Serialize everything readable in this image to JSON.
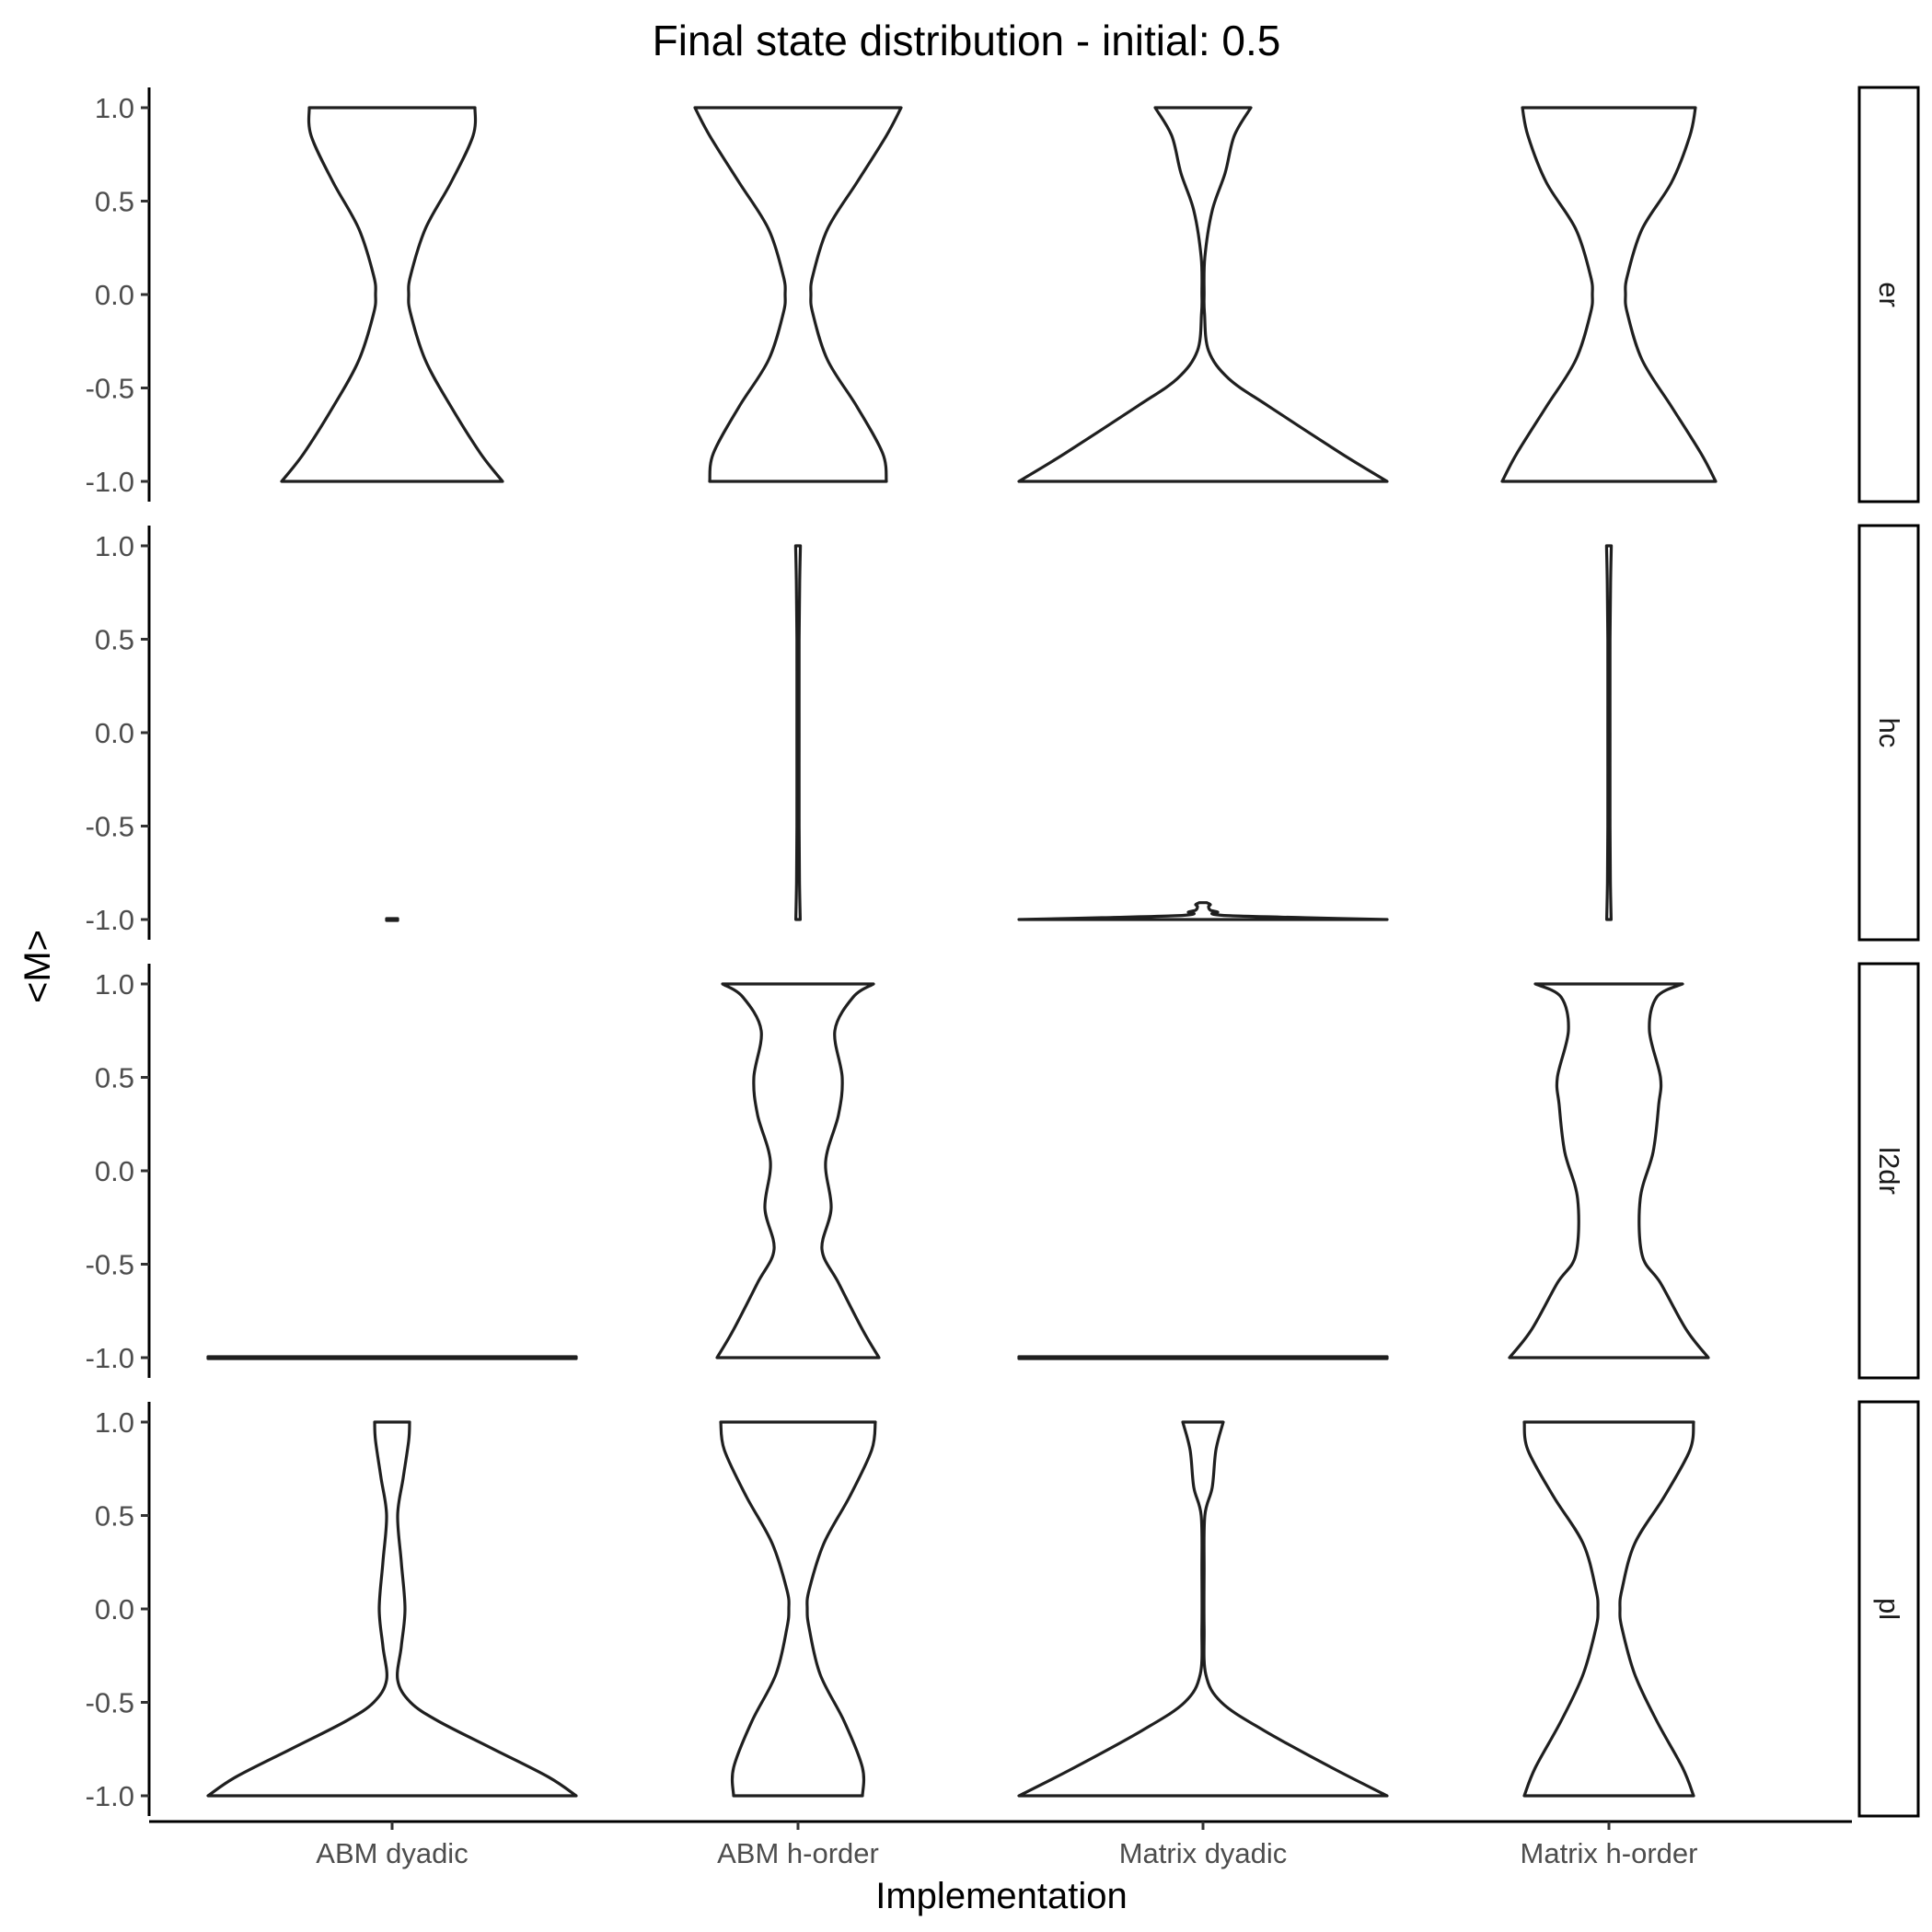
{
  "chart_data": {
    "type": "violin",
    "title": "Final state distribution - initial: 0.5",
    "xlabel": "Implementation",
    "ylabel": "<M>",
    "categories": [
      "ABM dyadic",
      "ABM h-order",
      "Matrix dyadic",
      "Matrix h-order"
    ],
    "y_ticks": [
      "-1.0",
      "-0.5",
      "0.0",
      "0.5",
      "1.0"
    ],
    "ylim": [
      -1.0,
      1.0
    ],
    "grid": false,
    "facets": [
      {
        "label": "er",
        "violins": [
          {
            "category": "ABM dyadic",
            "profile": [
              [
                -1.0,
                0.6
              ],
              [
                -0.85,
                0.48
              ],
              [
                -0.6,
                0.32
              ],
              [
                -0.35,
                0.18
              ],
              [
                -0.1,
                0.1
              ],
              [
                0.0,
                0.09
              ],
              [
                0.1,
                0.1
              ],
              [
                0.35,
                0.18
              ],
              [
                0.6,
                0.32
              ],
              [
                0.85,
                0.44
              ],
              [
                1.0,
                0.45
              ]
            ]
          },
          {
            "category": "ABM h-order",
            "profile": [
              [
                -1.0,
                0.48
              ],
              [
                -0.85,
                0.46
              ],
              [
                -0.6,
                0.32
              ],
              [
                -0.35,
                0.16
              ],
              [
                -0.1,
                0.08
              ],
              [
                0.0,
                0.07
              ],
              [
                0.1,
                0.08
              ],
              [
                0.35,
                0.16
              ],
              [
                0.6,
                0.32
              ],
              [
                0.85,
                0.48
              ],
              [
                1.0,
                0.56
              ]
            ]
          },
          {
            "category": "Matrix dyadic",
            "profile": [
              [
                -1.0,
                1.0
              ],
              [
                -0.85,
                0.75
              ],
              [
                -0.6,
                0.36
              ],
              [
                -0.45,
                0.14
              ],
              [
                -0.3,
                0.03
              ],
              [
                -0.1,
                0.008
              ],
              [
                0.0,
                0.006
              ],
              [
                0.2,
                0.01
              ],
              [
                0.45,
                0.05
              ],
              [
                0.65,
                0.12
              ],
              [
                0.85,
                0.17
              ],
              [
                1.0,
                0.26
              ]
            ]
          },
          {
            "category": "Matrix h-order",
            "profile": [
              [
                -1.0,
                0.58
              ],
              [
                -0.85,
                0.5
              ],
              [
                -0.6,
                0.34
              ],
              [
                -0.35,
                0.18
              ],
              [
                -0.1,
                0.1
              ],
              [
                0.0,
                0.09
              ],
              [
                0.1,
                0.1
              ],
              [
                0.35,
                0.18
              ],
              [
                0.6,
                0.34
              ],
              [
                0.85,
                0.44
              ],
              [
                1.0,
                0.47
              ]
            ]
          }
        ]
      },
      {
        "label": "hc",
        "violins": [
          {
            "category": "ABM dyadic",
            "profile": [
              [
                -1.0,
                0.03
              ],
              [
                -0.998,
                0.03
              ]
            ]
          },
          {
            "category": "ABM h-order",
            "profile": [
              [
                -1.0,
                0.012
              ],
              [
                -0.8,
                0.008
              ],
              [
                -0.5,
                0.006
              ],
              [
                0.0,
                0.005
              ],
              [
                0.5,
                0.006
              ],
              [
                0.8,
                0.009
              ],
              [
                1.0,
                0.013
              ]
            ]
          },
          {
            "category": "Matrix dyadic",
            "profile": [
              [
                -1.0,
                1.0
              ],
              [
                -0.99,
                0.55
              ],
              [
                -0.98,
                0.15
              ],
              [
                -0.97,
                0.05
              ],
              [
                -0.96,
                0.08
              ],
              [
                -0.95,
                0.04
              ],
              [
                -0.93,
                0.03
              ],
              [
                -0.92,
                0.04
              ],
              [
                -0.91,
                0.02
              ]
            ]
          },
          {
            "category": "Matrix h-order",
            "profile": [
              [
                -1.0,
                0.012
              ],
              [
                -0.8,
                0.008
              ],
              [
                -0.5,
                0.006
              ],
              [
                0.0,
                0.005
              ],
              [
                0.5,
                0.006
              ],
              [
                0.8,
                0.009
              ],
              [
                1.0,
                0.013
              ]
            ]
          }
        ]
      },
      {
        "label": "l2dr",
        "violins": [
          {
            "category": "ABM dyadic",
            "profile": [
              [
                -1.0,
                1.0
              ],
              [
                -0.998,
                1.0
              ]
            ]
          },
          {
            "category": "ABM h-order",
            "profile": [
              [
                -1.0,
                0.44
              ],
              [
                -0.85,
                0.35
              ],
              [
                -0.6,
                0.22
              ],
              [
                -0.42,
                0.13
              ],
              [
                -0.2,
                0.18
              ],
              [
                0.05,
                0.15
              ],
              [
                0.3,
                0.22
              ],
              [
                0.5,
                0.24
              ],
              [
                0.75,
                0.2
              ],
              [
                0.93,
                0.3
              ],
              [
                1.0,
                0.41
              ]
            ]
          },
          {
            "category": "Matrix dyadic",
            "profile": [
              [
                -1.0,
                1.0
              ],
              [
                -0.998,
                1.0
              ]
            ]
          },
          {
            "category": "Matrix h-order",
            "profile": [
              [
                -1.0,
                0.54
              ],
              [
                -0.85,
                0.42
              ],
              [
                -0.6,
                0.28
              ],
              [
                -0.45,
                0.18
              ],
              [
                -0.15,
                0.17
              ],
              [
                0.1,
                0.24
              ],
              [
                0.35,
                0.27
              ],
              [
                0.5,
                0.28
              ],
              [
                0.75,
                0.22
              ],
              [
                0.93,
                0.26
              ],
              [
                1.0,
                0.4
              ]
            ]
          }
        ]
      },
      {
        "label": "pl",
        "violins": [
          {
            "category": "ABM dyadic",
            "profile": [
              [
                -1.0,
                1.0
              ],
              [
                -0.9,
                0.85
              ],
              [
                -0.75,
                0.55
              ],
              [
                -0.6,
                0.25
              ],
              [
                -0.5,
                0.1
              ],
              [
                -0.38,
                0.03
              ],
              [
                -0.2,
                0.05
              ],
              [
                0.0,
                0.07
              ],
              [
                0.25,
                0.05
              ],
              [
                0.5,
                0.03
              ],
              [
                0.7,
                0.06
              ],
              [
                0.9,
                0.09
              ],
              [
                1.0,
                0.095
              ]
            ]
          },
          {
            "category": "ABM h-order",
            "profile": [
              [
                -1.0,
                0.35
              ],
              [
                -0.85,
                0.35
              ],
              [
                -0.6,
                0.25
              ],
              [
                -0.35,
                0.12
              ],
              [
                -0.1,
                0.06
              ],
              [
                0.0,
                0.05
              ],
              [
                0.1,
                0.06
              ],
              [
                0.35,
                0.14
              ],
              [
                0.6,
                0.28
              ],
              [
                0.85,
                0.4
              ],
              [
                1.0,
                0.42
              ]
            ]
          },
          {
            "category": "Matrix dyadic",
            "profile": [
              [
                -1.0,
                1.0
              ],
              [
                -0.85,
                0.7
              ],
              [
                -0.65,
                0.33
              ],
              [
                -0.5,
                0.1
              ],
              [
                -0.35,
                0.015
              ],
              [
                -0.1,
                0.004
              ],
              [
                0.2,
                0.004
              ],
              [
                0.5,
                0.01
              ],
              [
                0.65,
                0.05
              ],
              [
                0.85,
                0.07
              ],
              [
                1.0,
                0.11
              ]
            ]
          },
          {
            "category": "Matrix h-order",
            "profile": [
              [
                -1.0,
                0.46
              ],
              [
                -0.85,
                0.4
              ],
              [
                -0.6,
                0.26
              ],
              [
                -0.35,
                0.14
              ],
              [
                -0.1,
                0.07
              ],
              [
                0.0,
                0.06
              ],
              [
                0.1,
                0.07
              ],
              [
                0.35,
                0.14
              ],
              [
                0.6,
                0.3
              ],
              [
                0.85,
                0.44
              ],
              [
                1.0,
                0.46
              ]
            ]
          }
        ]
      }
    ]
  }
}
